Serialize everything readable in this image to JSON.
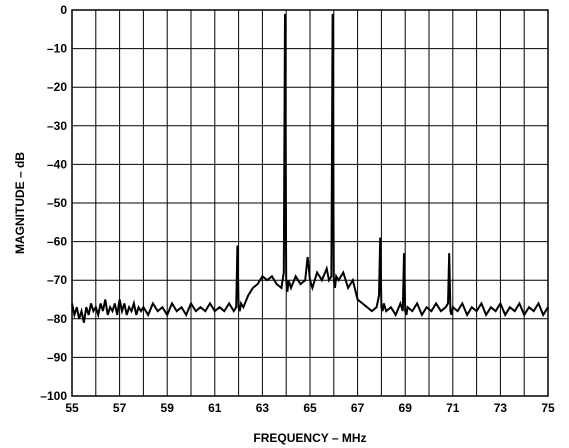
{
  "chart_data": {
    "type": "line",
    "title": "",
    "xlabel": "FREQUENCY – MHz",
    "ylabel": "MAGNITUDE – dB",
    "xlim": [
      55,
      75
    ],
    "ylim": [
      -100,
      0
    ],
    "grid": true,
    "x_ticks": [
      55,
      57,
      59,
      61,
      63,
      65,
      67,
      69,
      71,
      73,
      75
    ],
    "x_tick_labels": [
      "55",
      "57",
      "59",
      "61",
      "63",
      "65",
      "67",
      "69",
      "71",
      "73",
      "75"
    ],
    "x_grid": [
      55,
      56,
      57,
      58,
      59,
      60,
      61,
      62,
      63,
      64,
      65,
      66,
      67,
      68,
      69,
      70,
      71,
      72,
      73,
      74,
      75
    ],
    "y_ticks": [
      0,
      -10,
      -20,
      -30,
      -40,
      -50,
      -60,
      -70,
      -80,
      -90,
      -100
    ],
    "y_tick_labels": [
      "0",
      "–10",
      "–20",
      "–30",
      "–40",
      "–50",
      "–60",
      "–70",
      "–80",
      "–90",
      "–100"
    ],
    "series": [
      {
        "x": [
          55.0,
          55.1,
          55.2,
          55.3,
          55.4,
          55.5,
          55.6,
          55.7,
          55.8,
          55.9,
          56.0,
          56.1,
          56.2,
          56.3,
          56.4,
          56.5,
          56.6,
          56.7,
          56.8,
          56.9,
          57.0,
          57.1,
          57.2,
          57.3,
          57.4,
          57.5,
          57.6,
          57.7,
          57.8,
          57.9,
          58.0,
          58.2,
          58.4,
          58.6,
          58.8,
          59.0,
          59.2,
          59.4,
          59.6,
          59.8,
          60.0,
          60.2,
          60.4,
          60.6,
          60.8,
          61.0,
          61.2,
          61.4,
          61.6,
          61.8,
          61.9,
          61.95,
          62.0,
          62.05,
          62.1,
          62.2,
          62.4,
          62.6,
          62.8,
          63.0,
          63.2,
          63.4,
          63.6,
          63.8,
          63.9,
          63.95,
          64.0,
          64.05,
          64.1,
          64.2,
          64.4,
          64.6,
          64.8,
          64.9,
          65.0,
          65.1,
          65.3,
          65.5,
          65.7,
          65.8,
          65.9,
          65.95,
          66.0,
          66.05,
          66.1,
          66.2,
          66.4,
          66.6,
          66.8,
          67.0,
          67.2,
          67.4,
          67.6,
          67.8,
          67.9,
          67.95,
          68.0,
          68.05,
          68.1,
          68.2,
          68.4,
          68.6,
          68.8,
          68.9,
          68.95,
          69.0,
          69.05,
          69.1,
          69.3,
          69.5,
          69.7,
          69.9,
          70.1,
          70.3,
          70.5,
          70.7,
          70.8,
          70.85,
          70.9,
          70.95,
          71.0,
          71.2,
          71.4,
          71.6,
          71.8,
          72.0,
          72.2,
          72.4,
          72.6,
          72.8,
          73.0,
          73.2,
          73.4,
          73.6,
          73.8,
          74.0,
          74.2,
          74.4,
          74.6,
          74.8,
          75.0
        ],
        "y": [
          -76,
          -79,
          -77,
          -80,
          -78,
          -81,
          -77,
          -79,
          -76,
          -78,
          -77,
          -79,
          -76,
          -78,
          -75,
          -79,
          -77,
          -78,
          -76,
          -79,
          -75,
          -78,
          -76,
          -79,
          -77,
          -78,
          -76,
          -79,
          -77,
          -78,
          -77,
          -79,
          -76,
          -78,
          -77,
          -79,
          -76,
          -78,
          -77,
          -79,
          -76,
          -78,
          -77,
          -78,
          -76,
          -78,
          -77,
          -78,
          -76,
          -78,
          -77,
          -61,
          -77,
          -78,
          -76,
          -77,
          -74,
          -72,
          -71,
          -69,
          -70,
          -69,
          -71,
          -72,
          -68,
          -1,
          -70,
          -73,
          -70,
          -72,
          -69,
          -71,
          -70,
          -64,
          -70,
          -72,
          -68,
          -70,
          -67,
          -70,
          -69,
          -1,
          -70,
          -72,
          -69,
          -70,
          -68,
          -72,
          -70,
          -75,
          -76,
          -77,
          -78,
          -77,
          -74,
          -59,
          -77,
          -78,
          -76,
          -78,
          -77,
          -79,
          -76,
          -78,
          -63,
          -78,
          -79,
          -77,
          -78,
          -76,
          -79,
          -77,
          -78,
          -76,
          -78,
          -77,
          -76,
          -63,
          -78,
          -79,
          -77,
          -78,
          -76,
          -79,
          -77,
          -78,
          -76,
          -79,
          -77,
          -78,
          -76,
          -79,
          -77,
          -78,
          -76,
          -79,
          -77,
          -78,
          -76,
          -79,
          -77
        ]
      }
    ]
  }
}
